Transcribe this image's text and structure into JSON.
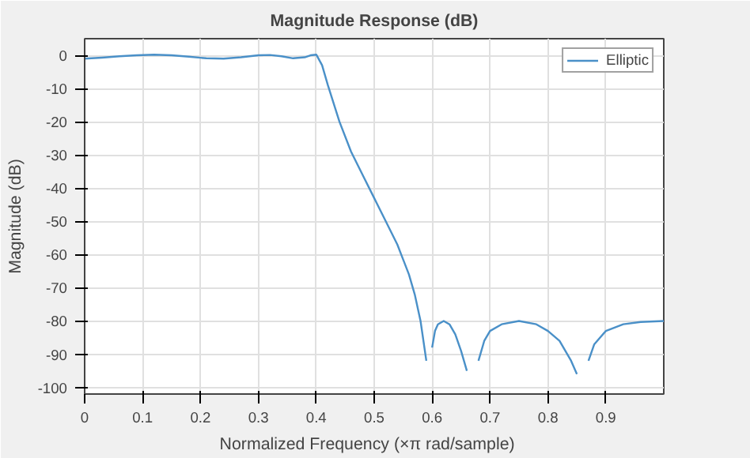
{
  "chart_data": {
    "type": "line",
    "title": "Magnitude Response (dB)",
    "xlabel": "Normalized  Frequency  (×π  rad/sample)",
    "ylabel": "Magnitude (dB)",
    "x": [
      0,
      0.03,
      0.06,
      0.09,
      0.12,
      0.15,
      0.18,
      0.21,
      0.24,
      0.27,
      0.3,
      0.32,
      0.34,
      0.36,
      0.38,
      0.39,
      0.4,
      0.41,
      0.42,
      0.44,
      0.46,
      0.48,
      0.5,
      0.52,
      0.54,
      0.56,
      0.57,
      0.58,
      0.59,
      0.595,
      0.6,
      0.605,
      0.61,
      0.62,
      0.63,
      0.64,
      0.65,
      0.66,
      0.67,
      0.675,
      0.68,
      0.69,
      0.7,
      0.72,
      0.75,
      0.78,
      0.8,
      0.82,
      0.84,
      0.85,
      0.86,
      0.865,
      0.87,
      0.88,
      0.9,
      0.93,
      0.96,
      1.0
    ],
    "series": [
      {
        "name": "Elliptic",
        "color": "#4a90c8",
        "values": [
          -1,
          -0.7,
          -0.3,
          0,
          0.2,
          0,
          -0.4,
          -0.9,
          -1,
          -0.6,
          0,
          0.1,
          -0.3,
          -0.9,
          -0.6,
          0,
          0.2,
          -3,
          -9,
          -20,
          -29,
          -36,
          -43,
          -50,
          -57,
          -66,
          -72,
          -80,
          -92,
          null,
          -88,
          -83,
          -81,
          -80,
          -81,
          -84,
          -89,
          -95,
          null,
          null,
          -92,
          -86,
          -83,
          -81,
          -80,
          -81,
          -83,
          -86,
          -92,
          -96,
          null,
          null,
          -92,
          -87,
          -83,
          -81,
          -80.3,
          -80
        ]
      }
    ],
    "xlim": [
      0,
      1
    ],
    "ylim": [
      -102,
      5
    ],
    "xticks": [
      0,
      0.1,
      0.2,
      0.3,
      0.4,
      0.5,
      0.6,
      0.7,
      0.8,
      0.9
    ],
    "yticks": [
      0,
      -10,
      -20,
      -30,
      -40,
      -50,
      -60,
      -70,
      -80,
      -90,
      -100
    ],
    "grid": true,
    "legend": "top right"
  }
}
